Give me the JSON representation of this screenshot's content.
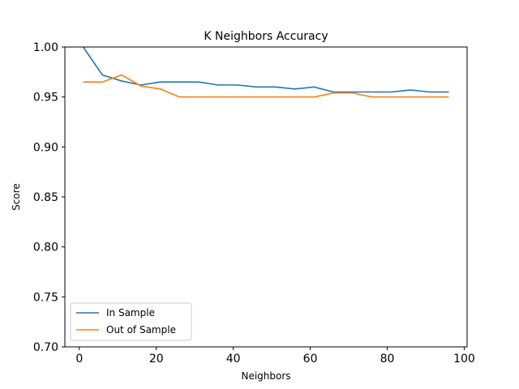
{
  "chart_data": {
    "type": "line",
    "title": "K Neighbors Accuracy",
    "xlabel": "Neighbors",
    "ylabel": "Score",
    "xlim": [
      -3.75,
      100.75
    ],
    "ylim": [
      0.7,
      1.0
    ],
    "xticks": [
      0,
      20,
      40,
      60,
      80,
      100
    ],
    "yticks": [
      0.7,
      0.75,
      0.8,
      0.85,
      0.9,
      0.95,
      1.0
    ],
    "ytick_labels": [
      "0.70",
      "0.75",
      "0.80",
      "0.85",
      "0.90",
      "0.95",
      "1.00"
    ],
    "grid": false,
    "legend_position": "lower left",
    "x": [
      1,
      6,
      11,
      16,
      21,
      26,
      31,
      36,
      41,
      46,
      51,
      56,
      61,
      66,
      71,
      76,
      81,
      86,
      91,
      96
    ],
    "series": [
      {
        "name": "In Sample",
        "color": "#1f77b4",
        "values": [
          1.0,
          0.972,
          0.966,
          0.962,
          0.965,
          0.965,
          0.965,
          0.962,
          0.962,
          0.96,
          0.96,
          0.958,
          0.96,
          0.955,
          0.955,
          0.955,
          0.955,
          0.957,
          0.955,
          0.955
        ]
      },
      {
        "name": "Out of Sample",
        "color": "#ff7f0e",
        "values": [
          0.965,
          0.965,
          0.972,
          0.961,
          0.958,
          0.95,
          0.95,
          0.95,
          0.95,
          0.95,
          0.95,
          0.95,
          0.95,
          0.954,
          0.954,
          0.95,
          0.95,
          0.95,
          0.95,
          0.95
        ]
      }
    ]
  }
}
